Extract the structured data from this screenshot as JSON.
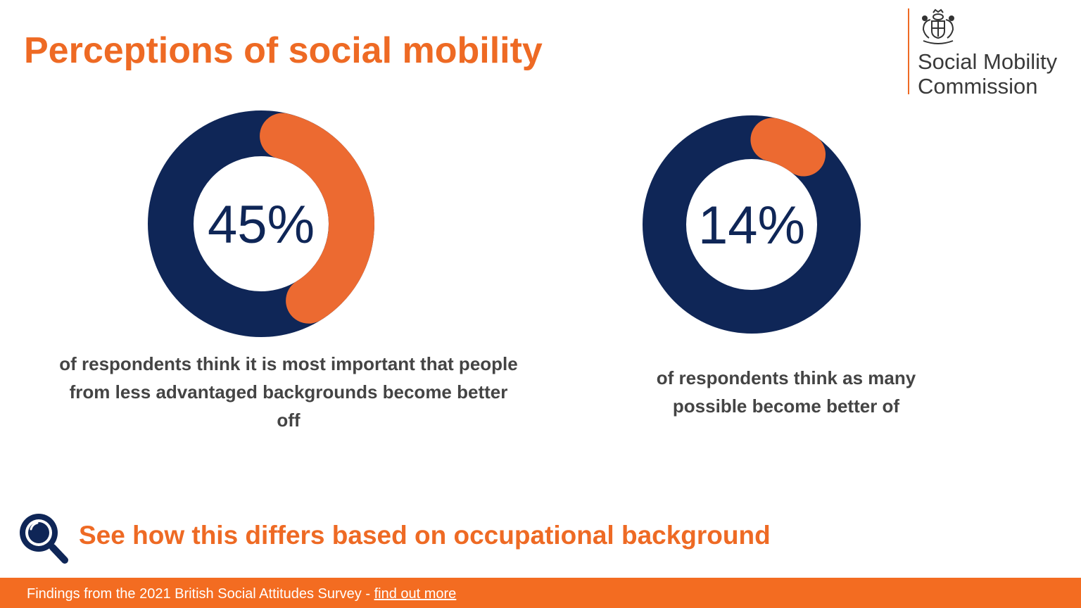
{
  "title": "Perceptions of social mobility",
  "logo": {
    "text": "Social Mobility\nCommission",
    "icon": "royal-crest-icon"
  },
  "colors": {
    "accent": "#ee6a24",
    "navy": "#0f2657",
    "footer": "#f36c21",
    "text": "#444444"
  },
  "chart_data": [
    {
      "type": "pie",
      "value": 45,
      "label": "45%",
      "caption": "of respondents think it is most important that people from less advantaged backgrounds become better off",
      "colors": {
        "highlight": "#ec6a31",
        "rest": "#0f2657"
      }
    },
    {
      "type": "pie",
      "value": 14,
      "label": "14%",
      "caption": "of respondents think as many possible become better of",
      "colors": {
        "highlight": "#ec6a31",
        "rest": "#0f2657"
      }
    }
  ],
  "cta": {
    "text": "See how this differs based on occupational background",
    "icon": "magnifying-glass-icon"
  },
  "footer": {
    "text": "Findings from the 2021 British Social Attitudes Survey - ",
    "link": "find out more"
  }
}
